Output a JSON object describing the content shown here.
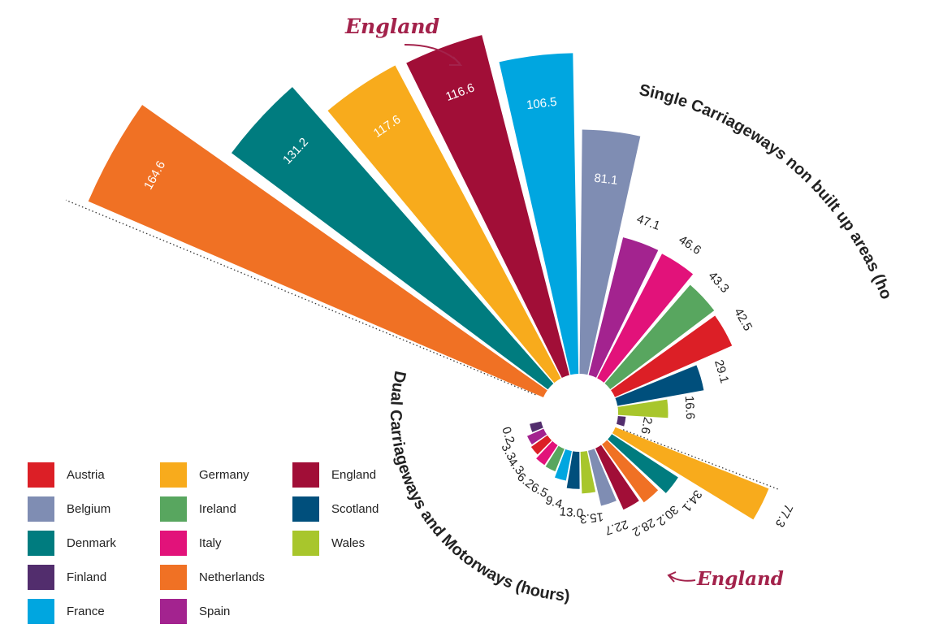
{
  "chart_data": {
    "type": "radial-bar",
    "series": [
      {
        "name": "Single Carriageways non built up areas (hours)",
        "categories": [
          "Netherlands",
          "Denmark",
          "Germany",
          "England",
          "France",
          "Belgium",
          "Spain",
          "Italy",
          "Ireland",
          "Austria",
          "Scotland",
          "Wales",
          "Finland"
        ],
        "values": [
          164.6,
          131.2,
          117.6,
          116.6,
          106.5,
          81.1,
          47.1,
          46.6,
          43.3,
          42.5,
          29.1,
          16.6,
          2.6
        ],
        "labels": [
          "164.6",
          "131.2",
          "117.6",
          "116.6",
          "106.5",
          "81.1",
          "47.1",
          "46.6",
          "43.3",
          "42.5",
          "29.1",
          "16.6",
          "2.6"
        ]
      },
      {
        "name": "Dual Carriageways and Motorways (hours)",
        "categories": [
          "Finland",
          "Spain",
          "Austria",
          "Italy",
          "Ireland",
          "France",
          "Scotland",
          "Wales",
          "Belgium",
          "England",
          "Netherlands",
          "Denmark",
          "Germany"
        ],
        "values": [
          0.2,
          3.3,
          4.3,
          6.2,
          6.5,
          9.4,
          13.0,
          15.3,
          22.7,
          28.2,
          30.2,
          34.1,
          77.3
        ],
        "labels": [
          "0.2",
          "3.3",
          "4.3",
          "6.2",
          "6.5",
          "9.4",
          "13.0",
          "15.3",
          "22.7",
          "28.2",
          "30.2",
          "34.1",
          "77.3"
        ]
      }
    ],
    "annotations": [
      {
        "text": "England",
        "target": "Single Carriageways non built up areas (hours)"
      },
      {
        "text": "England",
        "target": "Dual Carriageways and Motorways (hours)"
      }
    ]
  },
  "legend": [
    {
      "label": "Austria",
      "color": "#dc1f26"
    },
    {
      "label": "Belgium",
      "color": "#7f8db3"
    },
    {
      "label": "Denmark",
      "color": "#007c7f"
    },
    {
      "label": "Finland",
      "color": "#522d6d"
    },
    {
      "label": "France",
      "color": "#00a6e0"
    },
    {
      "label": "Germany",
      "color": "#f8ab1c"
    },
    {
      "label": "Ireland",
      "color": "#58a65f"
    },
    {
      "label": "Italy",
      "color": "#e2127a"
    },
    {
      "label": "Netherlands",
      "color": "#f07124"
    },
    {
      "label": "Spain",
      "color": "#a3238f"
    },
    {
      "label": "England",
      "color": "#a10e37"
    },
    {
      "label": "Scotland",
      "color": "#004f7c"
    },
    {
      "label": "Wales",
      "color": "#a8c62c"
    }
  ],
  "colors": {
    "text": "#222222",
    "callout": "#a3224b"
  }
}
